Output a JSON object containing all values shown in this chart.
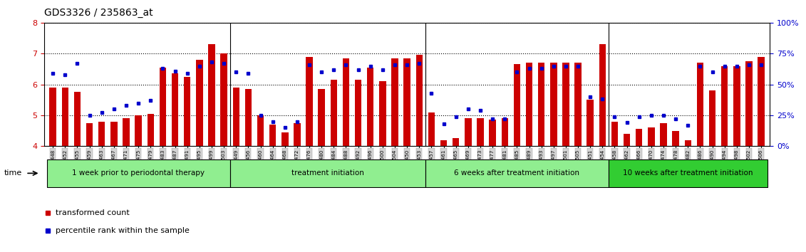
{
  "title": "GDS3326 / 235863_at",
  "samples": [
    "GSM155448",
    "GSM155452",
    "GSM155455",
    "GSM155459",
    "GSM155463",
    "GSM155467",
    "GSM155471",
    "GSM155475",
    "GSM155479",
    "GSM155483",
    "GSM155487",
    "GSM155491",
    "GSM155495",
    "GSM155499",
    "GSM155503",
    "GSM155449",
    "GSM155456",
    "GSM155460",
    "GSM155464",
    "GSM155468",
    "GSM155472",
    "GSM155476",
    "GSM155480",
    "GSM155484",
    "GSM155488",
    "GSM155492",
    "GSM155496",
    "GSM155500",
    "GSM155504",
    "GSM155450",
    "GSM155453",
    "GSM155457",
    "GSM155461",
    "GSM155465",
    "GSM155469",
    "GSM155473",
    "GSM155477",
    "GSM155481",
    "GSM155485",
    "GSM155489",
    "GSM155493",
    "GSM155497",
    "GSM155501",
    "GSM155505",
    "GSM155451",
    "GSM155454",
    "GSM155458",
    "GSM155462",
    "GSM155466",
    "GSM155470",
    "GSM155474",
    "GSM155478",
    "GSM155482",
    "GSM155486",
    "GSM155490",
    "GSM155494",
    "GSM155498",
    "GSM155502",
    "GSM155506"
  ],
  "transformed_count": [
    5.9,
    5.9,
    5.75,
    4.75,
    4.8,
    4.8,
    4.9,
    5.0,
    5.05,
    6.55,
    6.35,
    6.25,
    6.8,
    7.3,
    7.0,
    5.9,
    5.85,
    5.0,
    4.7,
    4.45,
    4.75,
    6.9,
    5.85,
    6.15,
    6.85,
    6.15,
    6.55,
    6.1,
    6.85,
    6.85,
    6.95,
    5.1,
    4.2,
    4.25,
    4.9,
    4.9,
    4.85,
    4.9,
    6.65,
    6.7,
    6.7,
    6.7,
    6.7,
    6.7,
    5.5,
    7.3,
    4.8,
    4.4,
    4.55,
    4.6,
    4.75,
    4.5,
    4.2,
    6.7,
    5.8,
    6.6,
    6.6,
    6.75,
    6.9
  ],
  "percentile_rank": [
    59,
    58,
    67,
    25,
    27,
    30,
    33,
    35,
    37,
    63,
    61,
    59,
    65,
    68,
    67,
    60,
    59,
    25,
    20,
    15,
    20,
    66,
    60,
    62,
    66,
    62,
    65,
    62,
    66,
    66,
    67,
    43,
    18,
    24,
    30,
    29,
    22,
    22,
    60,
    63,
    63,
    65,
    65,
    65,
    40,
    38,
    24,
    19,
    24,
    25,
    25,
    22,
    17,
    65,
    60,
    65,
    65,
    66,
    66
  ],
  "group_labels": [
    "1 week prior to periodontal therapy",
    "treatment initiation",
    "6 weeks after treatment initiation",
    "10 weeks after treatment initiation"
  ],
  "group_sizes": [
    15,
    16,
    15,
    13
  ],
  "group_colors_light": "#90EE90",
  "group_colors_dark": "#32CD32",
  "ymin": 4.0,
  "ymax": 8.0,
  "yticks": [
    4,
    5,
    6,
    7,
    8
  ],
  "right_yticks_pct": [
    0,
    25,
    50,
    75,
    100
  ],
  "right_yticklabels": [
    "0%",
    "25%",
    "50%",
    "75%",
    "100%"
  ],
  "bar_color": "#CC0000",
  "dot_color": "#0000CC",
  "bar_bottom": 4.0,
  "background_color": "#ffffff",
  "tick_color_left": "#CC0000",
  "tick_color_right": "#0000CC"
}
